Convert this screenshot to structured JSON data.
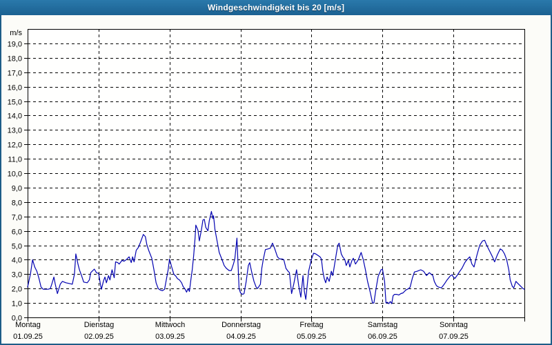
{
  "window": {
    "title": "Windgeschwindigkeit bis 20 [m/s]"
  },
  "chart_data": {
    "type": "line",
    "title": "Windgeschwindigkeit bis 20 [m/s]",
    "ylabel": "m/s",
    "xlabel": "",
    "ylim": [
      0,
      20
    ],
    "ytick_step": 1,
    "decimal_separator": ",",
    "grid": "dashed",
    "legend_position": "none",
    "x_days": [
      {
        "label": "Montag",
        "date": "01.09.25"
      },
      {
        "label": "Dienstag",
        "date": "02.09.25"
      },
      {
        "label": "Mittwoch",
        "date": "03.09.25"
      },
      {
        "label": "Donnerstag",
        "date": "04.09.25"
      },
      {
        "label": "Freitag",
        "date": "05.09.25"
      },
      {
        "label": "Samstag",
        "date": "06.09.25"
      },
      {
        "label": "Sonntag",
        "date": "07.09.25"
      }
    ],
    "series": [
      {
        "name": "Windgeschwindigkeit",
        "unit": "m/s",
        "color": "#0000b0",
        "points": [
          [
            0.0,
            2.1
          ],
          [
            0.04,
            3.0
          ],
          [
            0.07,
            4.0
          ],
          [
            0.1,
            3.5
          ],
          [
            0.13,
            3.2
          ],
          [
            0.16,
            2.7
          ],
          [
            0.19,
            2.1
          ],
          [
            0.22,
            1.95
          ],
          [
            0.26,
            1.95
          ],
          [
            0.29,
            1.95
          ],
          [
            0.32,
            2.0
          ],
          [
            0.34,
            2.3
          ],
          [
            0.37,
            2.8
          ],
          [
            0.39,
            2.3
          ],
          [
            0.42,
            1.65
          ],
          [
            0.46,
            2.3
          ],
          [
            0.49,
            2.5
          ],
          [
            0.54,
            2.4
          ],
          [
            0.59,
            2.35
          ],
          [
            0.63,
            2.3
          ],
          [
            0.66,
            3.0
          ],
          [
            0.68,
            4.4
          ],
          [
            0.71,
            3.7
          ],
          [
            0.73,
            3.3
          ],
          [
            0.76,
            2.9
          ],
          [
            0.79,
            2.45
          ],
          [
            0.84,
            2.4
          ],
          [
            0.87,
            2.6
          ],
          [
            0.89,
            3.1
          ],
          [
            0.93,
            3.3
          ],
          [
            0.94,
            3.35
          ],
          [
            0.97,
            3.1
          ],
          [
            1.0,
            3.05
          ],
          [
            1.03,
            2.2
          ],
          [
            1.04,
            1.95
          ],
          [
            1.07,
            2.55
          ],
          [
            1.09,
            2.8
          ],
          [
            1.11,
            2.4
          ],
          [
            1.14,
            2.9
          ],
          [
            1.16,
            2.6
          ],
          [
            1.19,
            3.3
          ],
          [
            1.22,
            2.75
          ],
          [
            1.24,
            3.85
          ],
          [
            1.27,
            3.8
          ],
          [
            1.29,
            3.7
          ],
          [
            1.33,
            3.95
          ],
          [
            1.36,
            3.9
          ],
          [
            1.39,
            4.0
          ],
          [
            1.43,
            4.2
          ],
          [
            1.46,
            3.8
          ],
          [
            1.48,
            4.2
          ],
          [
            1.5,
            3.85
          ],
          [
            1.53,
            4.65
          ],
          [
            1.56,
            4.85
          ],
          [
            1.59,
            5.2
          ],
          [
            1.63,
            5.75
          ],
          [
            1.66,
            5.6
          ],
          [
            1.68,
            5.05
          ],
          [
            1.71,
            4.6
          ],
          [
            1.75,
            4.1
          ],
          [
            1.78,
            3.3
          ],
          [
            1.81,
            2.4
          ],
          [
            1.84,
            2.0
          ],
          [
            1.87,
            1.9
          ],
          [
            1.9,
            1.85
          ],
          [
            1.93,
            1.95
          ],
          [
            1.95,
            2.5
          ],
          [
            1.98,
            3.3
          ],
          [
            2.0,
            4.05
          ],
          [
            2.03,
            3.5
          ],
          [
            2.06,
            3.0
          ],
          [
            2.09,
            2.85
          ],
          [
            2.11,
            2.7
          ],
          [
            2.14,
            2.6
          ],
          [
            2.17,
            2.4
          ],
          [
            2.19,
            2.15
          ],
          [
            2.22,
            1.95
          ],
          [
            2.24,
            1.75
          ],
          [
            2.26,
            2.0
          ],
          [
            2.28,
            1.8
          ],
          [
            2.3,
            2.6
          ],
          [
            2.32,
            3.3
          ],
          [
            2.34,
            4.3
          ],
          [
            2.36,
            5.5
          ],
          [
            2.37,
            6.4
          ],
          [
            2.4,
            6.05
          ],
          [
            2.42,
            5.3
          ],
          [
            2.45,
            6.1
          ],
          [
            2.47,
            6.75
          ],
          [
            2.49,
            6.8
          ],
          [
            2.51,
            6.25
          ],
          [
            2.54,
            6.0
          ],
          [
            2.56,
            6.7
          ],
          [
            2.59,
            7.35
          ],
          [
            2.61,
            6.85
          ],
          [
            2.62,
            7.05
          ],
          [
            2.64,
            6.1
          ],
          [
            2.67,
            5.3
          ],
          [
            2.7,
            4.5
          ],
          [
            2.74,
            4.0
          ],
          [
            2.77,
            3.6
          ],
          [
            2.8,
            3.4
          ],
          [
            2.84,
            3.25
          ],
          [
            2.87,
            3.25
          ],
          [
            2.9,
            3.7
          ],
          [
            2.92,
            4.05
          ],
          [
            2.95,
            5.5
          ],
          [
            2.97,
            3.1
          ],
          [
            2.98,
            2.0
          ],
          [
            3.0,
            1.7
          ],
          [
            3.03,
            1.6
          ],
          [
            3.05,
            1.65
          ],
          [
            3.08,
            2.5
          ],
          [
            3.11,
            3.6
          ],
          [
            3.13,
            3.8
          ],
          [
            3.16,
            3.1
          ],
          [
            3.19,
            2.5
          ],
          [
            3.22,
            2.1
          ],
          [
            3.24,
            2.0
          ],
          [
            3.28,
            2.3
          ],
          [
            3.3,
            3.4
          ],
          [
            3.32,
            4.0
          ],
          [
            3.35,
            4.7
          ],
          [
            3.39,
            4.75
          ],
          [
            3.42,
            4.8
          ],
          [
            3.45,
            5.15
          ],
          [
            3.48,
            4.8
          ],
          [
            3.52,
            4.2
          ],
          [
            3.55,
            4.05
          ],
          [
            3.59,
            4.05
          ],
          [
            3.61,
            4.0
          ],
          [
            3.64,
            3.4
          ],
          [
            3.67,
            3.2
          ],
          [
            3.69,
            3.1
          ],
          [
            3.72,
            1.65
          ],
          [
            3.75,
            2.3
          ],
          [
            3.79,
            3.3
          ],
          [
            3.82,
            2.2
          ],
          [
            3.85,
            1.4
          ],
          [
            3.88,
            2.9
          ],
          [
            3.9,
            1.8
          ],
          [
            3.92,
            1.25
          ],
          [
            3.96,
            3.2
          ],
          [
            4.0,
            4.05
          ],
          [
            4.03,
            4.45
          ],
          [
            4.06,
            4.4
          ],
          [
            4.09,
            4.3
          ],
          [
            4.12,
            4.2
          ],
          [
            4.14,
            4.05
          ],
          [
            4.16,
            3.2
          ],
          [
            4.18,
            2.7
          ],
          [
            4.2,
            2.4
          ],
          [
            4.22,
            2.8
          ],
          [
            4.25,
            2.5
          ],
          [
            4.28,
            3.2
          ],
          [
            4.3,
            2.9
          ],
          [
            4.35,
            4.4
          ],
          [
            4.37,
            5.0
          ],
          [
            4.39,
            5.15
          ],
          [
            4.42,
            4.4
          ],
          [
            4.44,
            4.2
          ],
          [
            4.47,
            4.0
          ],
          [
            4.49,
            3.6
          ],
          [
            4.52,
            3.95
          ],
          [
            4.54,
            3.5
          ],
          [
            4.57,
            3.95
          ],
          [
            4.59,
            4.1
          ],
          [
            4.62,
            3.7
          ],
          [
            4.66,
            4.0
          ],
          [
            4.7,
            4.5
          ],
          [
            4.73,
            4.0
          ],
          [
            4.76,
            3.3
          ],
          [
            4.79,
            2.5
          ],
          [
            4.83,
            1.7
          ],
          [
            4.86,
            1.0
          ],
          [
            4.88,
            1.0
          ],
          [
            4.91,
            2.0
          ],
          [
            4.94,
            2.85
          ],
          [
            4.98,
            3.3
          ],
          [
            5.0,
            3.35
          ],
          [
            5.03,
            2.5
          ],
          [
            5.04,
            1.7
          ],
          [
            5.05,
            1.0
          ],
          [
            5.07,
            1.05
          ],
          [
            5.09,
            0.95
          ],
          [
            5.11,
            1.1
          ],
          [
            5.13,
            0.95
          ],
          [
            5.15,
            1.5
          ],
          [
            5.17,
            1.6
          ],
          [
            5.2,
            1.6
          ],
          [
            5.23,
            1.55
          ],
          [
            5.26,
            1.65
          ],
          [
            5.29,
            1.7
          ],
          [
            5.33,
            1.9
          ],
          [
            5.37,
            2.0
          ],
          [
            5.39,
            2.1
          ],
          [
            5.42,
            2.7
          ],
          [
            5.45,
            3.15
          ],
          [
            5.49,
            3.2
          ],
          [
            5.54,
            3.3
          ],
          [
            5.58,
            3.2
          ],
          [
            5.62,
            2.9
          ],
          [
            5.66,
            3.1
          ],
          [
            5.71,
            2.9
          ],
          [
            5.73,
            2.5
          ],
          [
            5.76,
            2.2
          ],
          [
            5.79,
            2.1
          ],
          [
            5.83,
            2.05
          ],
          [
            5.87,
            2.3
          ],
          [
            5.91,
            2.6
          ],
          [
            5.96,
            2.9
          ],
          [
            5.98,
            2.95
          ],
          [
            6.0,
            2.8
          ],
          [
            6.02,
            2.7
          ],
          [
            6.05,
            2.9
          ],
          [
            6.09,
            3.2
          ],
          [
            6.12,
            3.4
          ],
          [
            6.16,
            3.8
          ],
          [
            6.19,
            4.0
          ],
          [
            6.23,
            4.2
          ],
          [
            6.26,
            3.7
          ],
          [
            6.29,
            3.5
          ],
          [
            6.33,
            4.3
          ],
          [
            6.37,
            5.0
          ],
          [
            6.41,
            5.3
          ],
          [
            6.44,
            5.35
          ],
          [
            6.46,
            5.1
          ],
          [
            6.49,
            4.8
          ],
          [
            6.52,
            4.5
          ],
          [
            6.55,
            4.2
          ],
          [
            6.58,
            3.85
          ],
          [
            6.62,
            4.35
          ],
          [
            6.66,
            4.75
          ],
          [
            6.69,
            4.65
          ],
          [
            6.72,
            4.4
          ],
          [
            6.75,
            4.0
          ],
          [
            6.78,
            3.3
          ],
          [
            6.8,
            2.6
          ],
          [
            6.83,
            2.15
          ],
          [
            6.85,
            2.05
          ],
          [
            6.88,
            2.5
          ],
          [
            6.91,
            2.35
          ],
          [
            6.95,
            2.15
          ],
          [
            6.98,
            2.0
          ],
          [
            7.0,
            1.95
          ]
        ]
      }
    ],
    "colors": {
      "titlebar": "#1f6b9d",
      "window_border": "#1d5d88",
      "background": "#fcfcf8",
      "plot_background": "#fffffe",
      "grid": "#000000",
      "line": "#0000b0",
      "text": "#000000"
    }
  }
}
